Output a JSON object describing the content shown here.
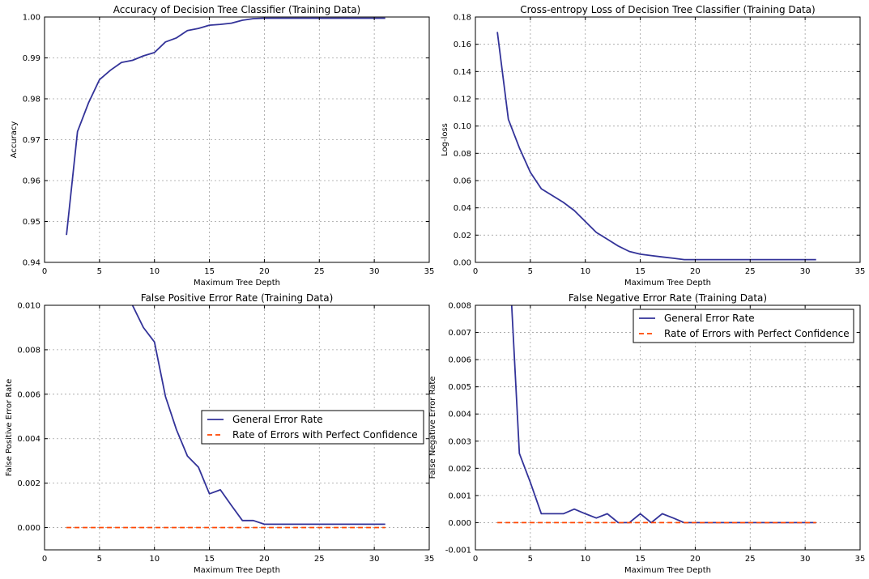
{
  "colors": {
    "general": "#333399",
    "perfect": "#ff4500",
    "grid": "#a0a0a0"
  },
  "chart_data": [
    {
      "type": "line",
      "title": "Accuracy of Decision Tree Classifier (Training Data)",
      "xlabel": "Maximum Tree Depth",
      "ylabel": "Accuracy",
      "xlim": [
        0,
        35
      ],
      "ylim": [
        0.94,
        1.0
      ],
      "xticks": [
        0,
        5,
        10,
        15,
        20,
        25,
        30,
        35
      ],
      "yticks": [
        0.94,
        0.95,
        0.96,
        0.97,
        0.98,
        0.99,
        1.0
      ],
      "ytick_labels": [
        "0.94",
        "0.95",
        "0.96",
        "0.97",
        "0.98",
        "0.99",
        "1.00"
      ],
      "grid": true,
      "series": [
        {
          "color": "general",
          "dash": "solid",
          "x": [
            2,
            3,
            4,
            5,
            6,
            7,
            8,
            9,
            10,
            11,
            12,
            13,
            14,
            15,
            16,
            17,
            18,
            19,
            20,
            21,
            22,
            23,
            24,
            25,
            26,
            27,
            28,
            29,
            30,
            31
          ],
          "y": [
            0.9467,
            0.972,
            0.979,
            0.9847,
            0.987,
            0.9889,
            0.9894,
            0.9905,
            0.9913,
            0.9939,
            0.9949,
            0.9967,
            0.9972,
            0.998,
            0.9982,
            0.9985,
            0.9992,
            0.9996,
            0.9997,
            0.9997,
            0.9997,
            0.9997,
            0.9997,
            0.9997,
            0.9997,
            0.9997,
            0.9997,
            0.9997,
            0.9997,
            0.9997
          ]
        }
      ]
    },
    {
      "type": "line",
      "title": "Cross-entropy Loss of Decision Tree Classifier (Training Data)",
      "xlabel": "Maximum Tree Depth",
      "ylabel": "Log-loss",
      "xlim": [
        0,
        35
      ],
      "ylim": [
        0.0,
        0.18
      ],
      "xticks": [
        0,
        5,
        10,
        15,
        20,
        25,
        30,
        35
      ],
      "yticks": [
        0.0,
        0.02,
        0.04,
        0.06,
        0.08,
        0.1,
        0.12,
        0.14,
        0.16,
        0.18
      ],
      "ytick_labels": [
        "0.00",
        "0.02",
        "0.04",
        "0.06",
        "0.08",
        "0.10",
        "0.12",
        "0.14",
        "0.16",
        "0.18"
      ],
      "grid": true,
      "series": [
        {
          "color": "general",
          "dash": "solid",
          "x": [
            2,
            3,
            4,
            5,
            6,
            7,
            8,
            9,
            10,
            11,
            12,
            13,
            14,
            15,
            16,
            17,
            18,
            19,
            20,
            21,
            22,
            23,
            24,
            25,
            26,
            27,
            28,
            29,
            30,
            31
          ],
          "y": [
            0.169,
            0.105,
            0.084,
            0.066,
            0.054,
            0.049,
            0.044,
            0.038,
            0.03,
            0.022,
            0.017,
            0.012,
            0.008,
            0.006,
            0.005,
            0.004,
            0.003,
            0.002,
            0.002,
            0.002,
            0.002,
            0.002,
            0.002,
            0.002,
            0.002,
            0.002,
            0.002,
            0.002,
            0.002,
            0.002
          ]
        }
      ]
    },
    {
      "type": "line",
      "title": "False Positive Error Rate (Training Data)",
      "xlabel": "Maximum Tree Depth",
      "ylabel": "False Positive Error Rate",
      "xlim": [
        0,
        35
      ],
      "ylim": [
        -0.001,
        0.01
      ],
      "xticks": [
        0,
        5,
        10,
        15,
        20,
        25,
        30,
        35
      ],
      "yticks": [
        0.0,
        0.002,
        0.004,
        0.006,
        0.008,
        0.01
      ],
      "ytick_labels": [
        "0.000",
        "0.002",
        "0.004",
        "0.006",
        "0.008",
        "0.010"
      ],
      "grid": true,
      "legend": "center-right",
      "series": [
        {
          "name": "General Error Rate",
          "color": "general",
          "dash": "solid",
          "x": [
            8,
            9,
            10,
            11,
            12,
            13,
            14,
            15,
            16,
            17,
            18,
            19,
            20,
            21,
            22,
            23,
            24,
            25,
            26,
            27,
            28,
            29,
            30,
            31
          ],
          "y": [
            0.01,
            0.009,
            0.00835,
            0.0059,
            0.0044,
            0.00322,
            0.00272,
            0.00152,
            0.0017,
            0.001,
            0.00032,
            0.00032,
            0.00015,
            0.00015,
            0.00015,
            0.00015,
            0.00015,
            0.00015,
            0.00015,
            0.00015,
            0.00015,
            0.00015,
            0.00015,
            0.00015
          ]
        },
        {
          "name": "Rate of Errors with Perfect Confidence",
          "color": "perfect",
          "dash": "dashed",
          "x": [
            2,
            31
          ],
          "y": [
            0.0,
            0.0
          ]
        }
      ]
    },
    {
      "type": "line",
      "title": "False Negative Error Rate (Training Data)",
      "xlabel": "Maximum Tree Depth",
      "ylabel": "False Negative Error Rate",
      "xlim": [
        0,
        35
      ],
      "ylim": [
        -0.001,
        0.008
      ],
      "xticks": [
        0,
        5,
        10,
        15,
        20,
        25,
        30,
        35
      ],
      "yticks": [
        -0.001,
        0.0,
        0.001,
        0.002,
        0.003,
        0.004,
        0.005,
        0.006,
        0.007,
        0.008
      ],
      "ytick_labels": [
        "-0.001",
        "0.000",
        "0.001",
        "0.002",
        "0.003",
        "0.004",
        "0.005",
        "0.006",
        "0.007",
        "0.008"
      ],
      "grid": true,
      "legend": "top-right",
      "series": [
        {
          "name": "General Error Rate",
          "color": "general",
          "dash": "solid",
          "x": [
            3.3,
            4,
            5,
            6,
            7,
            8,
            9,
            10,
            11,
            12,
            13,
            14,
            15,
            16,
            17,
            18,
            19,
            20,
            21,
            22,
            23,
            24,
            25,
            26,
            27,
            28,
            29,
            30,
            31
          ],
          "y": [
            0.008,
            0.00255,
            0.00148,
            0.00033,
            0.00033,
            0.00033,
            0.0005,
            0.00033,
            0.00017,
            0.00033,
            0.0,
            0.0,
            0.00033,
            0.0,
            0.00033,
            0.00017,
            0.0,
            0.0,
            0.0,
            0.0,
            0.0,
            0.0,
            0.0,
            0.0,
            0.0,
            0.0,
            0.0,
            0.0,
            0.0
          ]
        },
        {
          "name": "Rate of Errors with Perfect Confidence",
          "color": "perfect",
          "dash": "dashed",
          "x": [
            2,
            31
          ],
          "y": [
            0.0,
            0.0
          ]
        }
      ]
    }
  ]
}
